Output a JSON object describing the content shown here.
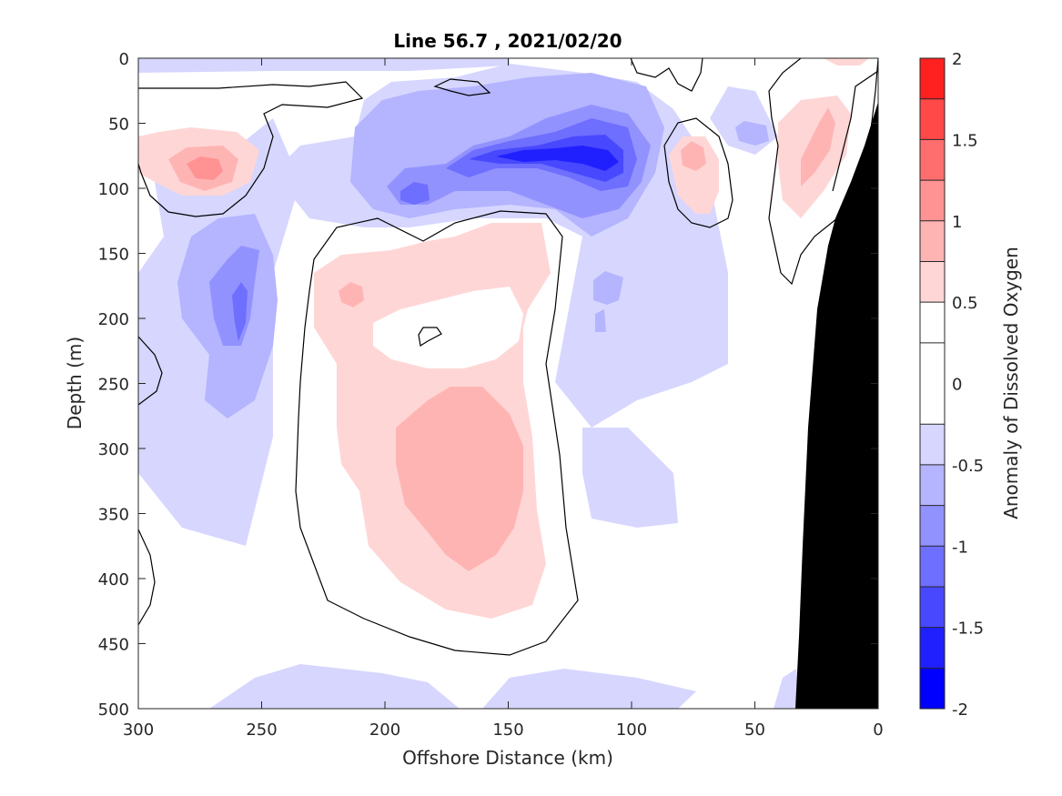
{
  "chart_data": {
    "type": "heatmap",
    "subtype": "filled-contour",
    "title": "Line 56.7 , 2021/02/20",
    "xlabel": "Offshore Distance (km)",
    "ylabel": "Depth (m)",
    "xlim": [
      300,
      0
    ],
    "x_reversed": true,
    "ylim": [
      0,
      500
    ],
    "y_reversed": true,
    "x_ticks": [
      300,
      250,
      200,
      150,
      100,
      50,
      0
    ],
    "y_ticks": [
      0,
      50,
      100,
      150,
      200,
      250,
      300,
      350,
      400,
      450,
      500
    ],
    "colorbar": {
      "label": "Anomaly of Dissolved Oxygen",
      "range": [
        -2,
        2
      ],
      "tick_values": [
        -2,
        -1.5,
        -1,
        -0.5,
        0,
        0.5,
        1,
        1.5,
        2
      ],
      "tick_labels": [
        "-2",
        "-1.5",
        "-1",
        "-0.5",
        "0",
        "0.5",
        "1",
        "1.5",
        "2"
      ],
      "levels": [
        -2,
        -1.75,
        -1.5,
        -1.25,
        -1,
        -0.75,
        -0.5,
        -0.25,
        0.25,
        0.5,
        0.75,
        1,
        1.25,
        1.5,
        1.75,
        2
      ],
      "colors": [
        "#0000ff",
        "#2020ff",
        "#4848ff",
        "#6e6eff",
        "#9292ff",
        "#b4b4ff",
        "#d6d6ff",
        "#ffffff",
        "#ffd6d6",
        "#ffb4b4",
        "#ff9292",
        "#ff6e6e",
        "#ff4848",
        "#ff2020",
        "#ff0000"
      ]
    },
    "regions": [
      {
        "name": "strong-low-core",
        "dist_km": [
          150,
          100
        ],
        "depth_m": [
          55,
          95
        ],
        "value": -1.5
      },
      {
        "name": "low-band-upper",
        "dist_km": [
          200,
          90
        ],
        "depth_m": [
          35,
          130
        ],
        "value": -0.75
      },
      {
        "name": "low-band-deep",
        "dist_km": [
          275,
          230
        ],
        "depth_m": [
          140,
          270
        ],
        "value": -0.75
      },
      {
        "name": "high-core-deep",
        "dist_km": [
          185,
          140
        ],
        "depth_m": [
          260,
          390
        ],
        "value": 0.5
      },
      {
        "name": "high-region-mid",
        "dist_km": [
          225,
          120
        ],
        "depth_m": [
          130,
          450
        ],
        "value": 0.3
      },
      {
        "name": "high-upper-left",
        "dist_km": [
          285,
          255
        ],
        "depth_m": [
          55,
          110
        ],
        "value": 0.75
      },
      {
        "name": "high-upper-right",
        "dist_km": [
          30,
          10
        ],
        "depth_m": [
          35,
          120
        ],
        "value": 0.6
      },
      {
        "name": "high-small-right",
        "dist_km": [
          85,
          65
        ],
        "depth_m": [
          60,
          115
        ],
        "value": 0.5
      }
    ],
    "zero_contour_line": true,
    "land_mask": {
      "name": "coast-bathymetry",
      "color": "#000000",
      "dist_km_at_surface": 0,
      "dist_km_at_bottom": 33
    }
  }
}
